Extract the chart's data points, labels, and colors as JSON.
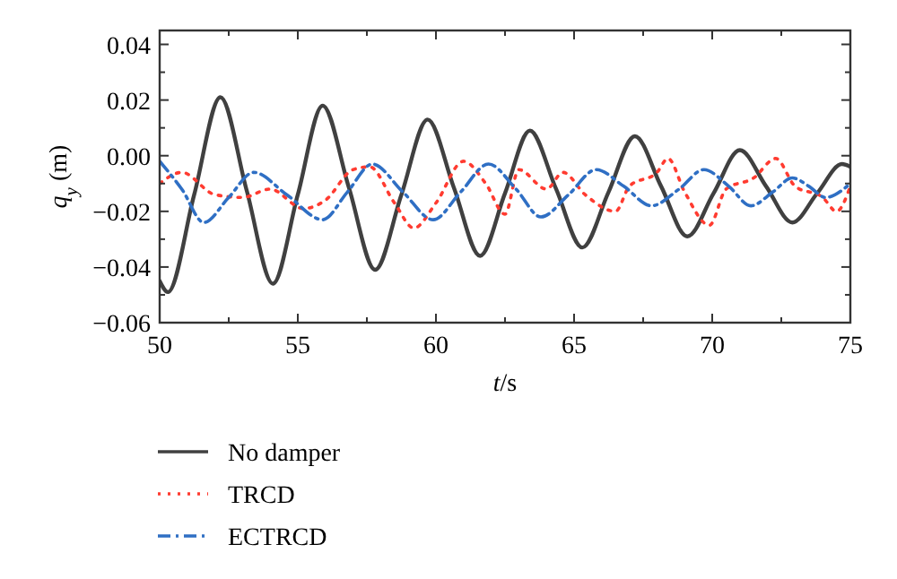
{
  "chart_data": {
    "type": "line",
    "xlabel": "t/s",
    "ylabel": "q$_{y}$ (m)",
    "xlim": [
      50,
      75
    ],
    "ylim": [
      -0.06,
      0.045
    ],
    "xticks": [
      50,
      55,
      60,
      65,
      70,
      75
    ],
    "yticks": [
      {
        "value": -0.06,
        "label": "−0.06"
      },
      {
        "value": -0.04,
        "label": "−0.04"
      },
      {
        "value": -0.02,
        "label": "−0.02"
      },
      {
        "value": 0,
        "label": "0.00"
      },
      {
        "value": 0.02,
        "label": "0.02"
      },
      {
        "value": 0.04,
        "label": "0.04"
      }
    ],
    "grid": false,
    "legend": "bottom",
    "series": [
      {
        "name": "No damper",
        "color": "#404040",
        "line_style": "solid",
        "x": [
          50,
          50.3,
          51.25,
          52.2,
          53.15,
          54.1,
          55.0,
          55.9,
          56.85,
          57.8,
          58.75,
          59.7,
          60.65,
          61.6,
          62.5,
          63.4,
          64.35,
          65.3,
          66.25,
          67.2,
          68.15,
          69.1,
          70.05,
          71.0,
          71.95,
          72.9,
          73.8,
          74.7,
          75
        ],
        "values": [
          -0.045,
          -0.049,
          -0.014,
          0.021,
          -0.0125,
          -0.046,
          -0.014,
          0.018,
          -0.0115,
          -0.041,
          -0.014,
          0.013,
          -0.0115,
          -0.036,
          -0.0135,
          0.009,
          -0.012,
          -0.033,
          -0.013,
          0.007,
          -0.011,
          -0.029,
          -0.0135,
          0.002,
          -0.011,
          -0.024,
          -0.0135,
          -0.003,
          -0.004
        ]
      },
      {
        "name": "TRCD",
        "color": "#ff3b30",
        "line_style": "dotted",
        "x": [
          50,
          50.8,
          52.0,
          53.0,
          54.0,
          55.2,
          56.0,
          57.0,
          57.6,
          58.5,
          59.2,
          60.0,
          61.0,
          61.8,
          62.5,
          63.0,
          64.0,
          64.6,
          65.4,
          66.5,
          67.0,
          68.0,
          68.4,
          69.0,
          69.9,
          70.5,
          71.5,
          72.3,
          73.0,
          74.0,
          74.5,
          75.0
        ],
        "values": [
          -0.01,
          -0.006,
          -0.014,
          -0.015,
          -0.012,
          -0.019,
          -0.016,
          -0.005,
          -0.004,
          -0.017,
          -0.026,
          -0.017,
          -0.002,
          -0.01,
          -0.021,
          -0.005,
          -0.012,
          -0.006,
          -0.014,
          -0.02,
          -0.011,
          -0.006,
          -0.001,
          -0.013,
          -0.025,
          -0.012,
          -0.008,
          -0.001,
          -0.011,
          -0.015,
          -0.02,
          -0.011
        ]
      },
      {
        "name": "ECTRCD",
        "color": "#2f6fc4",
        "line_style": "dashdot",
        "x": [
          50,
          50.8,
          51.6,
          52.5,
          53.4,
          54.6,
          55.9,
          56.8,
          57.7,
          58.8,
          59.9,
          60.9,
          61.9,
          62.9,
          63.8,
          64.8,
          65.8,
          66.8,
          67.8,
          68.8,
          69.7,
          70.6,
          71.4,
          72.2,
          72.9,
          73.5,
          74.1,
          75
        ],
        "values": [
          -0.002,
          -0.012,
          -0.024,
          -0.015,
          -0.006,
          -0.014,
          -0.023,
          -0.013,
          -0.003,
          -0.013,
          -0.023,
          -0.013,
          -0.003,
          -0.012,
          -0.022,
          -0.014,
          -0.005,
          -0.011,
          -0.018,
          -0.012,
          -0.005,
          -0.011,
          -0.018,
          -0.013,
          -0.008,
          -0.011,
          -0.015,
          -0.01
        ]
      }
    ]
  }
}
